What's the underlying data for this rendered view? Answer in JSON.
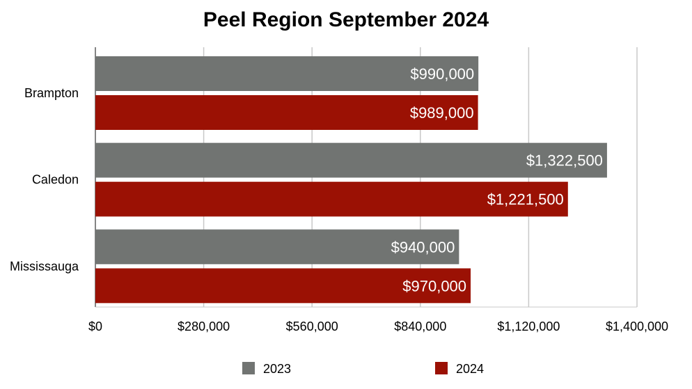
{
  "chart_data": {
    "type": "bar",
    "orientation": "horizontal",
    "title": "Peel Region September 2024",
    "categories": [
      "Brampton",
      "Caledon",
      "Mississauga"
    ],
    "series": [
      {
        "name": "2023",
        "color": "#717472",
        "values": [
          990000,
          1322500,
          940000
        ],
        "labels": [
          "$990,000",
          "$1,322,500",
          "$940,000"
        ]
      },
      {
        "name": "2024",
        "color": "#9b1104",
        "values": [
          989000,
          1221500,
          970000
        ],
        "labels": [
          "$989,000",
          "$1,221,500",
          "$970,000"
        ]
      }
    ],
    "xlim": [
      0,
      1400000
    ],
    "x_ticks": [
      0,
      280000,
      560000,
      840000,
      1120000,
      1400000
    ],
    "x_tick_labels": [
      "$0",
      "$280,000",
      "$560,000",
      "$840,000",
      "$1,120,000",
      "$1,400,000"
    ],
    "grid": true,
    "legend_position": "bottom"
  }
}
